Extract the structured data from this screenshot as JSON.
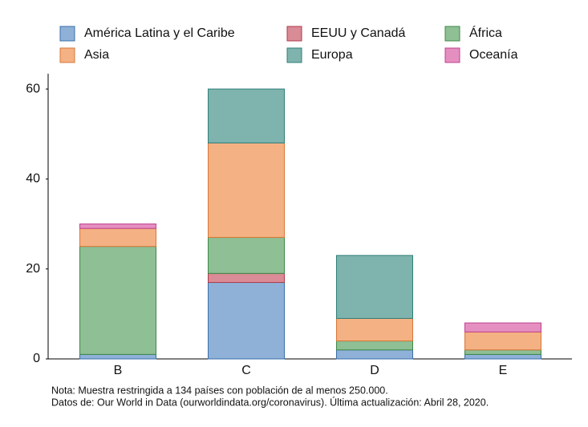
{
  "chart_data": {
    "type": "stacked_bar",
    "categories": [
      "B",
      "C",
      "D",
      "E"
    ],
    "series": [
      {
        "name": "América Latina y el Caribe",
        "color": "#8fb1d8",
        "edgecolor": "#3a6fa8",
        "values": [
          1,
          17,
          2,
          1
        ]
      },
      {
        "name": "EEUU y Canadá",
        "color": "#d98b96",
        "edgecolor": "#b03a4a",
        "values": [
          0,
          2,
          0,
          0
        ]
      },
      {
        "name": "África",
        "color": "#8fbf94",
        "edgecolor": "#3f8a48",
        "values": [
          24,
          8,
          2,
          1
        ]
      },
      {
        "name": "Asia",
        "color": "#f4b183",
        "edgecolor": "#d9773a",
        "values": [
          4,
          21,
          5,
          4
        ]
      },
      {
        "name": "Europa",
        "color": "#7fb3ae",
        "edgecolor": "#2f7f78",
        "values": [
          0,
          12,
          14,
          0
        ]
      },
      {
        "name": "Oceanía",
        "color": "#e58fc1",
        "edgecolor": "#c0408f",
        "values": [
          1,
          0,
          0,
          2
        ]
      }
    ],
    "ylim": [
      0,
      63.4
    ],
    "yticks": [
      0,
      20,
      40,
      60
    ],
    "grid": false,
    "notes": [
      "Nota: Muestra restringida a 134 países con población de al menos 250.000.",
      "Datos de: Our World in Data (ourworldindata.org/coronavirus). Última actualización: Abril 28, 2020."
    ]
  }
}
